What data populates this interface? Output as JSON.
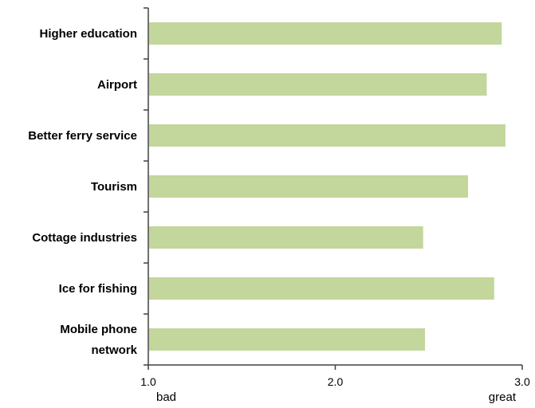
{
  "chart_data": {
    "type": "bar",
    "orientation": "horizontal",
    "categories": [
      [
        "Higher education"
      ],
      [
        "Airport"
      ],
      [
        "Better ferry service"
      ],
      [
        "Tourism"
      ],
      [
        "Cottage industries"
      ],
      [
        "Ice for fishing"
      ],
      [
        "Mobile phone",
        "network"
      ]
    ],
    "values": [
      2.89,
      2.81,
      2.91,
      2.71,
      2.47,
      2.85,
      2.48
    ],
    "xlim": [
      1.0,
      3.0
    ],
    "xticks": [
      "1.0",
      "2.0",
      "3.0"
    ],
    "x_end_labels": {
      "low": "bad",
      "high": "great"
    },
    "grid": false,
    "legend": "none",
    "bar_color": "#c3d69b",
    "axis_color": "#404040"
  }
}
